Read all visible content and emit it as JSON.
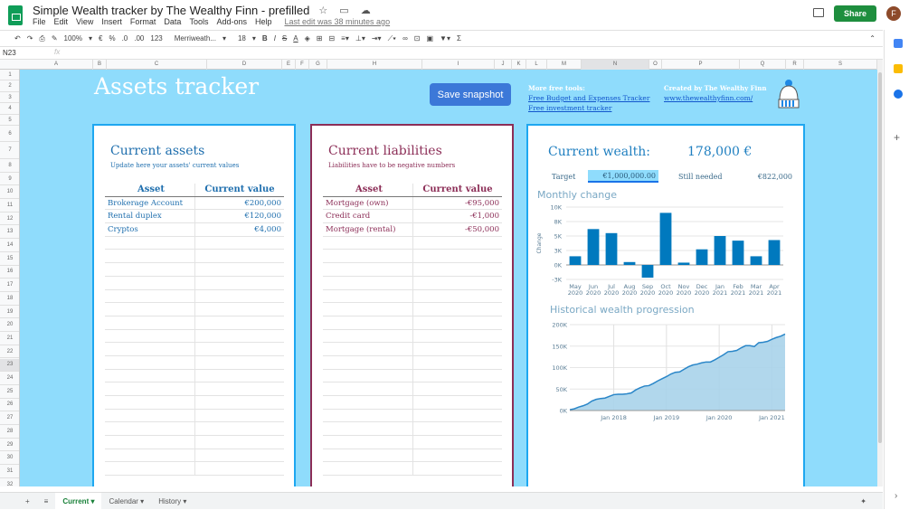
{
  "doc": {
    "title": "Simple Wealth tracker by The Wealthy Finn - prefilled",
    "last_edit": "Last edit was 38 minutes ago",
    "share": "Share",
    "avatar": "F"
  },
  "menu": [
    "File",
    "Edit",
    "View",
    "Insert",
    "Format",
    "Data",
    "Tools",
    "Add-ons",
    "Help"
  ],
  "toolbar": {
    "zoom": "100%",
    "currency": "€",
    "percent": "%",
    "dec_less": ".0",
    "dec_more": ".00",
    "format": "123",
    "font": "Merriweath...",
    "size": "18",
    "bold": "B",
    "italic": "I",
    "strike": "S",
    "text_color": "A",
    "sum": "Σ"
  },
  "formula": {
    "cell": "N23",
    "fx": "fx"
  },
  "columns": [
    "A",
    "B",
    "C",
    "D",
    "E",
    "F",
    "G",
    "H",
    "I",
    "J",
    "K",
    "L",
    "M",
    "N",
    "O",
    "P",
    "Q",
    "R",
    "S"
  ],
  "sheet": {
    "title": "Assets tracker",
    "save_button": "Save snapshot",
    "more_tools": "More free tools:",
    "link1": "Free Budget and Expenses Tracker",
    "link2": "Free investment tracker",
    "created": "Created by The Wealthy Finn",
    "site": "www.thewealthyfinn.com/",
    "assets": {
      "title": "Current assets",
      "subtitle": "Update here your assets' current values",
      "h1": "Asset",
      "h2": "Current value",
      "rows": [
        {
          "name": "Brokerage Account",
          "value": "€200,000"
        },
        {
          "name": "Rental duplex",
          "value": "€120,000"
        },
        {
          "name": "Cryptos",
          "value": "€4,000"
        }
      ]
    },
    "liabilities": {
      "title": "Current liabilities",
      "subtitle": "Liabilities have to be negative numbers",
      "h1": "Asset",
      "h2": "Current value",
      "rows": [
        {
          "name": "Mortgage (own)",
          "value": "-€95,000"
        },
        {
          "name": "Credit card",
          "value": "-€1,000"
        },
        {
          "name": "Mortgage (rental)",
          "value": "-€50,000"
        }
      ]
    },
    "wealth": {
      "label": "Current wealth:",
      "value": "178,000 €",
      "target_label": "Target",
      "target": "€1,000,000.00",
      "needed_label": "Still needed",
      "needed": "€822,000"
    }
  },
  "colors": {
    "sheet_bg": "#8fdcfc",
    "card_border": "#1ea7f0",
    "assets_title": "#1f6fae",
    "liab_title": "#8c2e57",
    "bar": "#0079be",
    "area": "#a9d3ea"
  },
  "chart_data": [
    {
      "type": "bar",
      "title": "Monthly change",
      "ylabel": "Change",
      "categories": [
        "May 2020",
        "Jun 2020",
        "Jul 2020",
        "Aug 2020",
        "Sep 2020",
        "Oct 2020",
        "Nov 2020",
        "Dec 2020",
        "Jan 2021",
        "Feb 2021",
        "Mar 2021",
        "Apr 2021"
      ],
      "values": [
        1500,
        6200,
        5500,
        500,
        -2200,
        9000,
        400,
        2700,
        5000,
        4200,
        1500,
        4300
      ],
      "yticks": [
        -2500,
        0,
        2500,
        5000,
        7500,
        10000
      ],
      "ytick_labels": [
        "-3K",
        "0K",
        "3K",
        "5K",
        "8K",
        "10K"
      ],
      "ylim": [
        -2500,
        10000
      ],
      "grid": true
    },
    {
      "type": "area",
      "title": "Historical wealth progression",
      "x_start": "2017-03",
      "x_step": "month",
      "values": [
        2000,
        4000,
        8000,
        11000,
        15000,
        22000,
        26000,
        28000,
        29000,
        33000,
        37000,
        38000,
        38000,
        39000,
        41000,
        48000,
        53000,
        57000,
        58000,
        63000,
        69000,
        74000,
        79000,
        85000,
        89000,
        90000,
        96000,
        102000,
        106000,
        108000,
        111000,
        113000,
        113000,
        118000,
        124000,
        130000,
        137000,
        138000,
        140000,
        146000,
        151000,
        151000,
        149000,
        158000,
        159000,
        161000,
        166000,
        170000,
        173000,
        178000
      ],
      "yticks": [
        0,
        50000,
        100000,
        150000,
        200000
      ],
      "ytick_labels": [
        "0K",
        "50K",
        "100K",
        "150K",
        "200K"
      ],
      "ylim": [
        0,
        200000
      ],
      "xticks": [
        "Jan 2018",
        "Jan 2019",
        "Jan 2020",
        "Jan 2021"
      ],
      "grid": true
    }
  ],
  "tabs": [
    {
      "label": "Current",
      "active": true
    },
    {
      "label": "Calendar"
    },
    {
      "label": "History"
    }
  ]
}
